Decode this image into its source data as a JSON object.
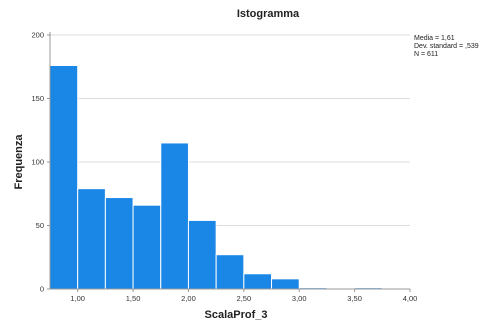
{
  "chart_data": {
    "type": "bar",
    "title": "Istogramma",
    "xlabel": "ScalaProf_3",
    "ylabel": "Frequenza",
    "bin_width": 0.25,
    "x_range": [
      0.75,
      4.0
    ],
    "ylim": [
      0,
      200
    ],
    "x_ticks": [
      1.0,
      1.5,
      2.0,
      2.5,
      3.0,
      3.5,
      4.0
    ],
    "x_tick_labels": [
      "1,00",
      "1,50",
      "2,00",
      "2,50",
      "3,00",
      "3,50",
      "4,00"
    ],
    "y_ticks": [
      0,
      50,
      100,
      150,
      200
    ],
    "y_tick_labels": [
      "0",
      "50",
      "100",
      "150",
      "200"
    ],
    "grid": true,
    "bars": [
      {
        "x_start": 0.75,
        "value": 176
      },
      {
        "x_start": 1.0,
        "value": 79
      },
      {
        "x_start": 1.25,
        "value": 72
      },
      {
        "x_start": 1.5,
        "value": 66
      },
      {
        "x_start": 1.75,
        "value": 115
      },
      {
        "x_start": 2.0,
        "value": 54
      },
      {
        "x_start": 2.25,
        "value": 27
      },
      {
        "x_start": 2.5,
        "value": 12
      },
      {
        "x_start": 2.75,
        "value": 8
      },
      {
        "x_start": 3.0,
        "value": 1
      },
      {
        "x_start": 3.25,
        "value": 0
      },
      {
        "x_start": 3.5,
        "value": 1
      },
      {
        "x_start": 3.75,
        "value": 0
      }
    ],
    "stats": [
      "Media = 1,61",
      "Dev. standard = ,539",
      "N = 611"
    ],
    "bar_color": "#1a86e6",
    "bar_edge_color": "#ffffff",
    "grid_color": "#dcdcdc",
    "axis_color": "#999999"
  }
}
